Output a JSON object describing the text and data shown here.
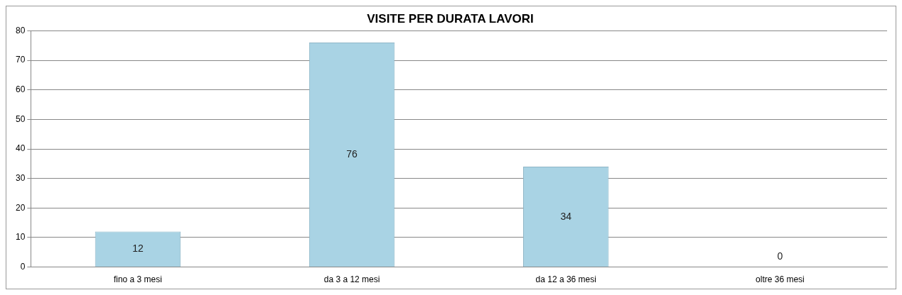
{
  "chart_data": {
    "type": "bar",
    "title": "VISITE PER DURATA LAVORI",
    "categories": [
      "fino a 3 mesi",
      "da 3 a 12 mesi",
      "da 12 a 36 mesi",
      "oltre 36 mesi"
    ],
    "values": [
      12,
      76,
      34,
      0
    ],
    "color": "#a9d3e4",
    "ylim": [
      0,
      80
    ],
    "yticks": [
      0,
      10,
      20,
      30,
      40,
      50,
      60,
      70,
      80
    ],
    "grid": "y",
    "data_labels": true
  }
}
